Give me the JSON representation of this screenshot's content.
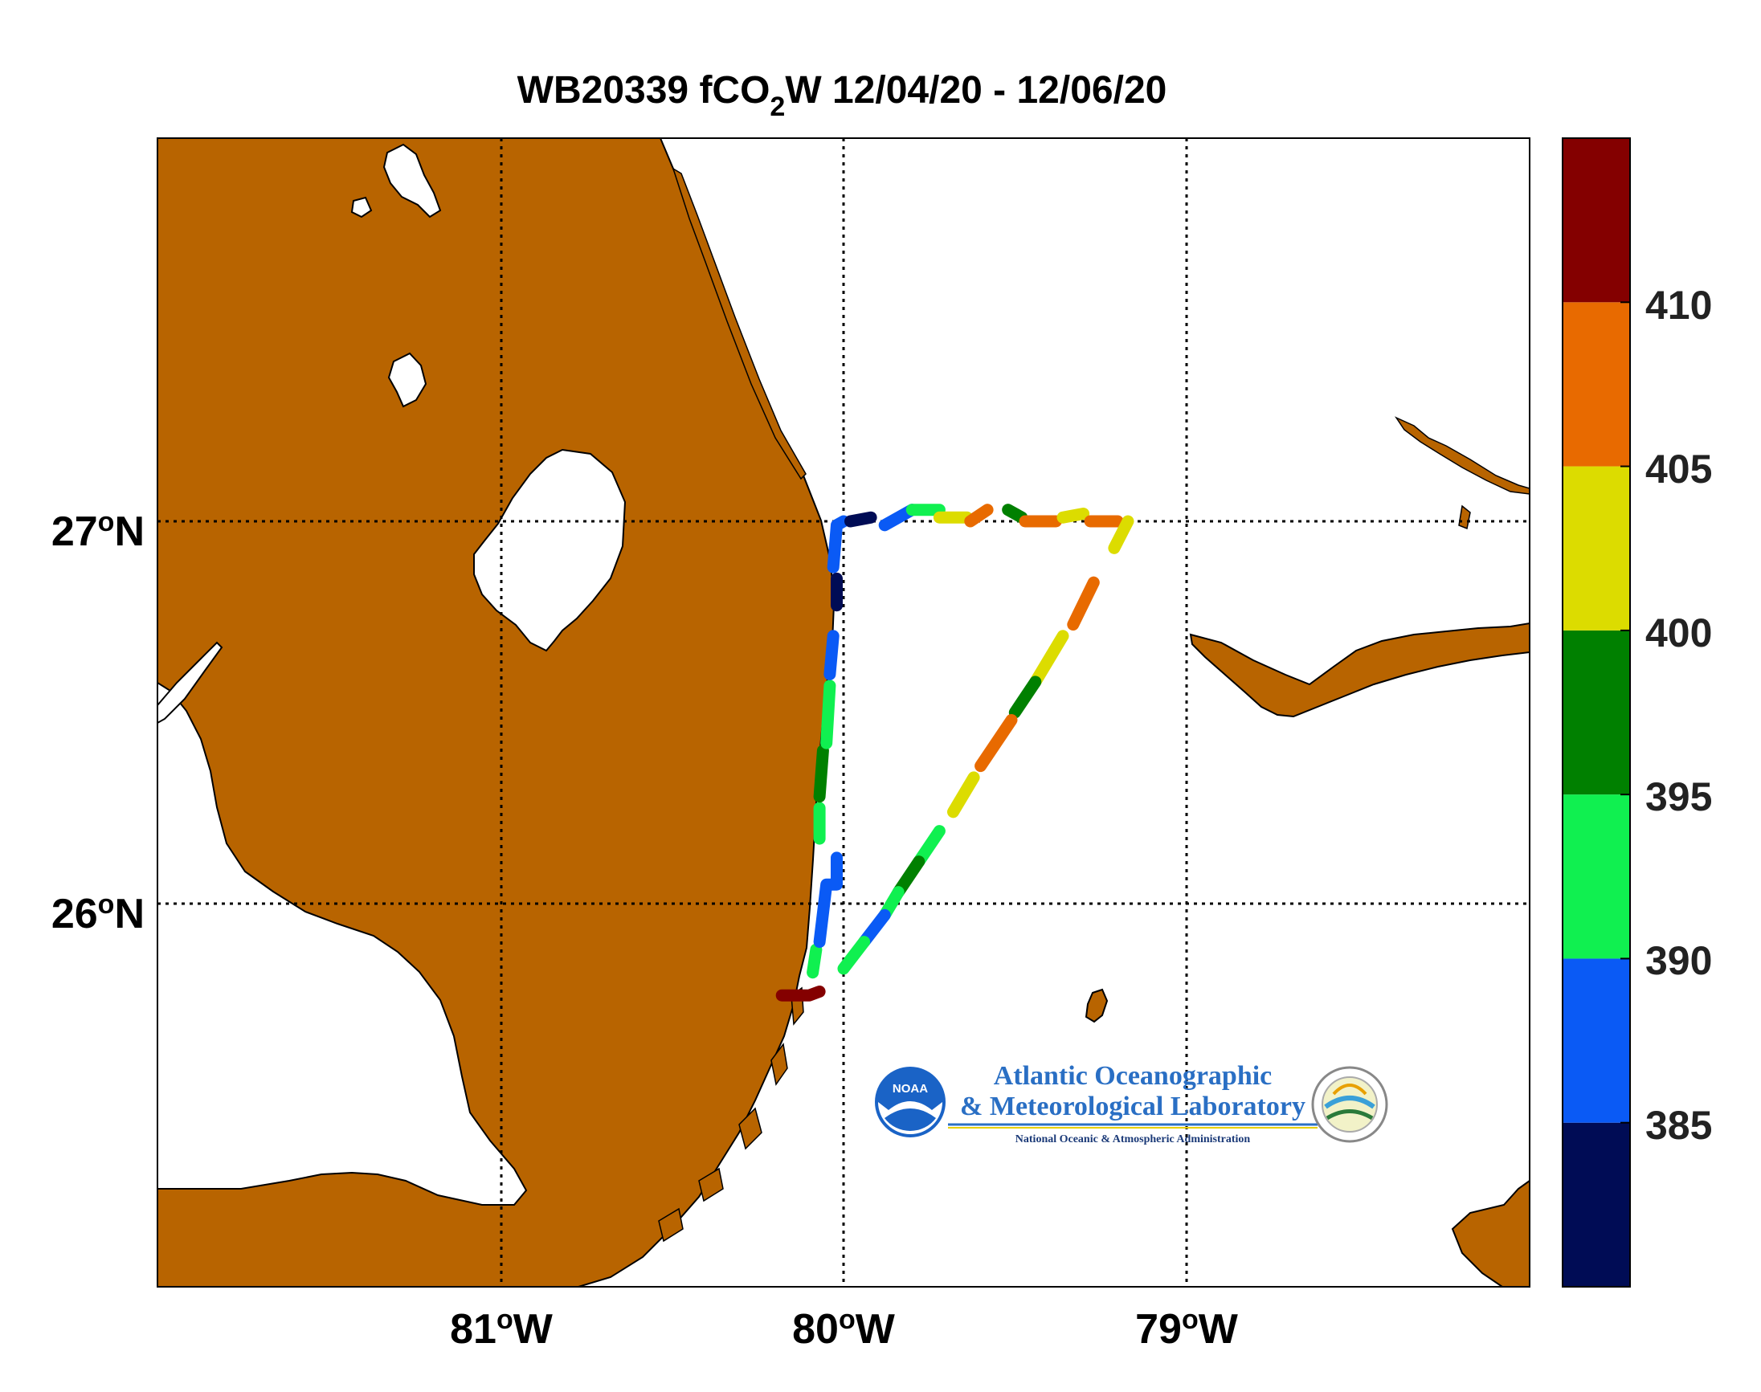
{
  "title": {
    "prefix": "WB20339 fCO",
    "subscript": "2",
    "suffix": "W 12/04/20 - 12/06/20"
  },
  "map": {
    "lon_range": [
      -82.0,
      -78.0
    ],
    "lat_range": [
      25.0,
      28.0
    ],
    "land_color": "#b86400",
    "water_color": "#ffffff",
    "grid": true,
    "grid_lons": [
      -81,
      -80,
      -79
    ],
    "grid_lats": [
      26,
      27
    ],
    "lon_ticks": [
      {
        "lon": -81,
        "deg": "81",
        "sup": "o",
        "hem": "W"
      },
      {
        "lon": -80,
        "deg": "80",
        "sup": "o",
        "hem": "W"
      },
      {
        "lon": -79,
        "deg": "79",
        "sup": "o",
        "hem": "W"
      }
    ],
    "lat_ticks": [
      {
        "lat": 27,
        "deg": "27",
        "sup": "o",
        "hem": "N"
      },
      {
        "lat": 26,
        "deg": "26",
        "sup": "o",
        "hem": "N"
      }
    ]
  },
  "colorbar": {
    "range": [
      380,
      415
    ],
    "bands": [
      {
        "from": 380,
        "to": 385,
        "color": "#000c55"
      },
      {
        "from": 385,
        "to": 390,
        "color": "#0a5af5"
      },
      {
        "from": 390,
        "to": 395,
        "color": "#10f050"
      },
      {
        "from": 395,
        "to": 400,
        "color": "#008000"
      },
      {
        "from": 400,
        "to": 405,
        "color": "#dcdc00"
      },
      {
        "from": 405,
        "to": 410,
        "color": "#e86a00"
      },
      {
        "from": 410,
        "to": 415,
        "color": "#840000"
      }
    ],
    "tick_labels": [
      "385",
      "390",
      "395",
      "400",
      "405",
      "410"
    ]
  },
  "logo": {
    "line1": "Atlantic Oceanographic",
    "line2": "& Meteorological Laboratory",
    "line3": "National Oceanic & Atmospheric Administration",
    "badge": "noaa-logo",
    "seal": "aoml-seal"
  },
  "chart_data": {
    "type": "scatter",
    "title": "WB20339 fCO2W 12/04/20 - 12/06/20",
    "x_label": "",
    "y_label": "",
    "xlim": [
      -82.0,
      -78.0
    ],
    "ylim": [
      25.0,
      28.0
    ],
    "value_range": [
      380,
      415
    ],
    "legend": "colorbar-right",
    "track_segments": [
      {
        "fco2": 413,
        "points": [
          [
            -80.18,
            25.76
          ],
          [
            -80.1,
            25.76
          ],
          [
            -80.07,
            25.77
          ]
        ]
      },
      {
        "fco2": 392,
        "points": [
          [
            -80.09,
            25.82
          ],
          [
            -80.08,
            25.88
          ]
        ]
      },
      {
        "fco2": 388,
        "points": [
          [
            -80.07,
            25.9
          ],
          [
            -80.05,
            26.05
          ],
          [
            -80.02,
            26.05
          ],
          [
            -80.02,
            26.12
          ]
        ]
      },
      {
        "fco2": 394,
        "points": [
          [
            -80.07,
            26.17
          ],
          [
            -80.07,
            26.25
          ]
        ]
      },
      {
        "fco2": 396,
        "points": [
          [
            -80.07,
            26.28
          ],
          [
            -80.06,
            26.4
          ]
        ]
      },
      {
        "fco2": 393,
        "points": [
          [
            -80.05,
            26.42
          ],
          [
            -80.04,
            26.57
          ]
        ]
      },
      {
        "fco2": 388,
        "points": [
          [
            -80.04,
            26.6
          ],
          [
            -80.03,
            26.7
          ]
        ]
      },
      {
        "fco2": 383,
        "points": [
          [
            -80.02,
            26.78
          ],
          [
            -80.02,
            26.85
          ]
        ]
      },
      {
        "fco2": 387,
        "points": [
          [
            -80.03,
            26.88
          ],
          [
            -80.02,
            26.99
          ],
          [
            -80.0,
            27.0
          ]
        ]
      },
      {
        "fco2": 382,
        "points": [
          [
            -79.98,
            27.0
          ],
          [
            -79.92,
            27.01
          ]
        ]
      },
      {
        "fco2": 388,
        "points": [
          [
            -79.88,
            26.99
          ],
          [
            -79.8,
            27.03
          ]
        ]
      },
      {
        "fco2": 392,
        "points": [
          [
            -79.8,
            27.03
          ],
          [
            -79.72,
            27.03
          ]
        ]
      },
      {
        "fco2": 402,
        "points": [
          [
            -79.72,
            27.01
          ],
          [
            -79.64,
            27.01
          ]
        ]
      },
      {
        "fco2": 407,
        "points": [
          [
            -79.63,
            27.0
          ],
          [
            -79.58,
            27.03
          ]
        ]
      },
      {
        "fco2": 397,
        "points": [
          [
            -79.52,
            27.03
          ],
          [
            -79.48,
            27.01
          ]
        ]
      },
      {
        "fco2": 407,
        "points": [
          [
            -79.47,
            27.0
          ],
          [
            -79.38,
            27.0
          ]
        ]
      },
      {
        "fco2": 403,
        "points": [
          [
            -79.36,
            27.01
          ],
          [
            -79.3,
            27.02
          ]
        ]
      },
      {
        "fco2": 407,
        "points": [
          [
            -79.28,
            27.0
          ],
          [
            -79.2,
            27.0
          ]
        ]
      },
      {
        "fco2": 402,
        "points": [
          [
            -79.17,
            27.0
          ],
          [
            -79.21,
            26.93
          ]
        ]
      },
      {
        "fco2": 406,
        "points": [
          [
            -79.27,
            26.84
          ],
          [
            -79.33,
            26.73
          ]
        ]
      },
      {
        "fco2": 403,
        "points": [
          [
            -79.36,
            26.7
          ],
          [
            -79.44,
            26.58
          ]
        ]
      },
      {
        "fco2": 398,
        "points": [
          [
            -79.44,
            26.58
          ],
          [
            -79.5,
            26.5
          ]
        ]
      },
      {
        "fco2": 406,
        "points": [
          [
            -79.51,
            26.48
          ],
          [
            -79.6,
            26.36
          ]
        ]
      },
      {
        "fco2": 403,
        "points": [
          [
            -79.62,
            26.33
          ],
          [
            -79.68,
            26.24
          ]
        ]
      },
      {
        "fco2": 393,
        "points": [
          [
            -79.72,
            26.19
          ],
          [
            -79.78,
            26.11
          ]
        ]
      },
      {
        "fco2": 397,
        "points": [
          [
            -79.78,
            26.11
          ],
          [
            -79.84,
            26.03
          ]
        ]
      },
      {
        "fco2": 392,
        "points": [
          [
            -79.84,
            26.03
          ],
          [
            -79.88,
            25.97
          ]
        ]
      },
      {
        "fco2": 388,
        "points": [
          [
            -79.88,
            25.97
          ],
          [
            -79.94,
            25.9
          ]
        ]
      },
      {
        "fco2": 393,
        "points": [
          [
            -79.94,
            25.9
          ],
          [
            -80.0,
            25.83
          ]
        ]
      }
    ]
  }
}
